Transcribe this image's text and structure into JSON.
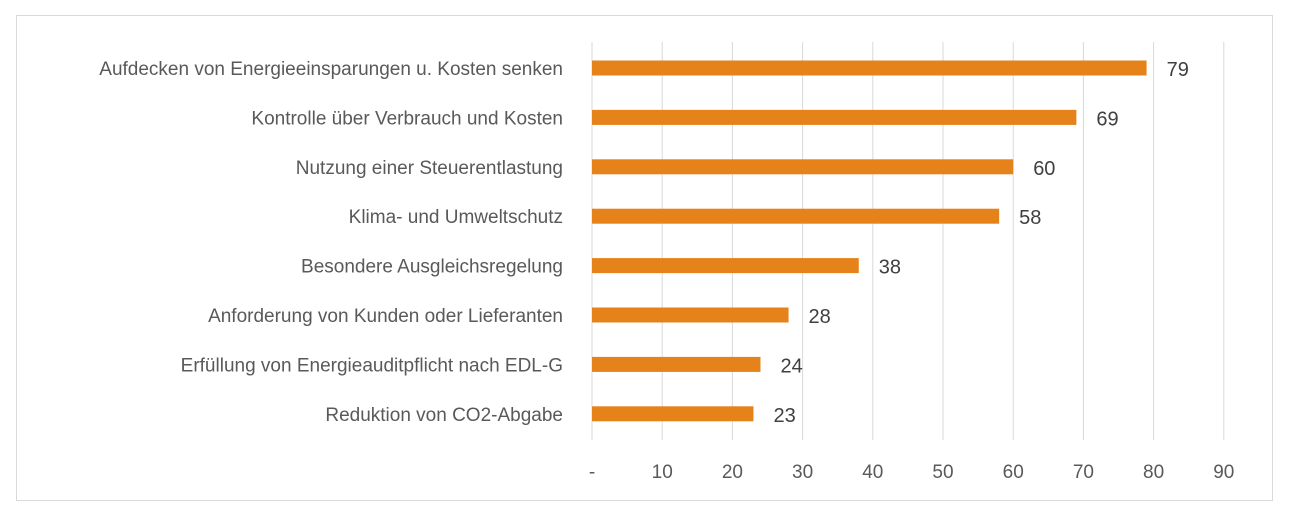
{
  "chart_data": {
    "type": "bar",
    "orientation": "horizontal",
    "categories": [
      "Aufdecken von Energieeinsparungen u. Kosten senken",
      "Kontrolle über Verbrauch und Kosten",
      "Nutzung einer Steuerentlastung",
      "Klima- und Umweltschutz",
      "Besondere Ausgleichsregelung",
      "Anforderung von Kunden oder Lieferanten",
      "Erfüllung von Energieauditpflicht nach EDL-G",
      "Reduktion von CO2-Abgabe"
    ],
    "values": [
      79,
      69,
      60,
      58,
      38,
      28,
      24,
      23
    ],
    "xlim": [
      0,
      90
    ],
    "xticks": [
      "-",
      "10",
      "20",
      "30",
      "40",
      "50",
      "60",
      "70",
      "80",
      "90"
    ],
    "grid": true,
    "data_labels": true,
    "bar_color": "#E6821A",
    "title": "",
    "xlabel": "",
    "ylabel": ""
  }
}
